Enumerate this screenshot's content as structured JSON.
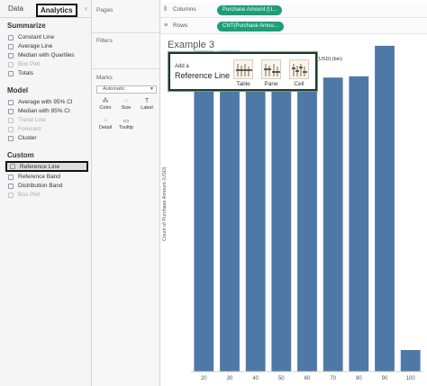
{
  "tabs": {
    "data": "Data",
    "analytics": "Analytics",
    "collapse_glyph": "‹"
  },
  "analytics": {
    "summarize": {
      "title": "Summarize",
      "items": [
        {
          "label": "Constant Line",
          "enabled": true
        },
        {
          "label": "Average Line",
          "enabled": true
        },
        {
          "label": "Median with Quartiles",
          "enabled": true
        },
        {
          "label": "Box Plot",
          "enabled": false
        },
        {
          "label": "Totals",
          "enabled": true
        }
      ]
    },
    "model": {
      "title": "Model",
      "items": [
        {
          "label": "Average with 95% CI",
          "enabled": true
        },
        {
          "label": "Median with 95% CI",
          "enabled": true
        },
        {
          "label": "Trend Line",
          "enabled": false
        },
        {
          "label": "Forecast",
          "enabled": false
        },
        {
          "label": "Cluster",
          "enabled": true
        }
      ]
    },
    "custom": {
      "title": "Custom",
      "items": [
        {
          "label": "Reference Line",
          "enabled": true,
          "selected": true
        },
        {
          "label": "Reference Band",
          "enabled": true
        },
        {
          "label": "Distribution Band",
          "enabled": true
        },
        {
          "label": "Box Plot",
          "enabled": false
        }
      ]
    }
  },
  "cards": {
    "pages": "Pages",
    "filters": "Filters",
    "marks": "Marks",
    "mark_type": "Automatic",
    "buttons": [
      {
        "label": "Color",
        "icon": "color-icon"
      },
      {
        "label": "Size",
        "icon": "size-icon"
      },
      {
        "label": "Label",
        "icon": "label-icon"
      },
      {
        "label": "Detail",
        "icon": "detail-icon"
      },
      {
        "label": "Tooltip",
        "icon": "tooltip-icon"
      }
    ]
  },
  "shelves": {
    "columns": {
      "label": "Columns",
      "pill": "Purchase Amount (U..."
    },
    "rows": {
      "label": "Rows",
      "pill": "CNT(Purchase Amou..."
    }
  },
  "sheet": {
    "title": "Example 3"
  },
  "popup": {
    "small": "Add a",
    "big": "Reference Line",
    "options": [
      "Table",
      "Pane",
      "Cell"
    ]
  },
  "colors": {
    "bar": "#4e79a7",
    "pill": "#1d9e77",
    "highlight_border": "#111111"
  },
  "chart_data": {
    "type": "bar",
    "categories": [
      "20",
      "30",
      "40",
      "50",
      "60",
      "70",
      "80",
      "90",
      "100"
    ],
    "values": [
      505,
      505,
      451,
      468,
      469,
      463,
      465,
      513,
      34
    ],
    "xlabel": "(USD) (bin)",
    "ylabel": "Count of Purchase Amount (USD)",
    "ylim": [
      0,
      520
    ],
    "grid": false
  }
}
